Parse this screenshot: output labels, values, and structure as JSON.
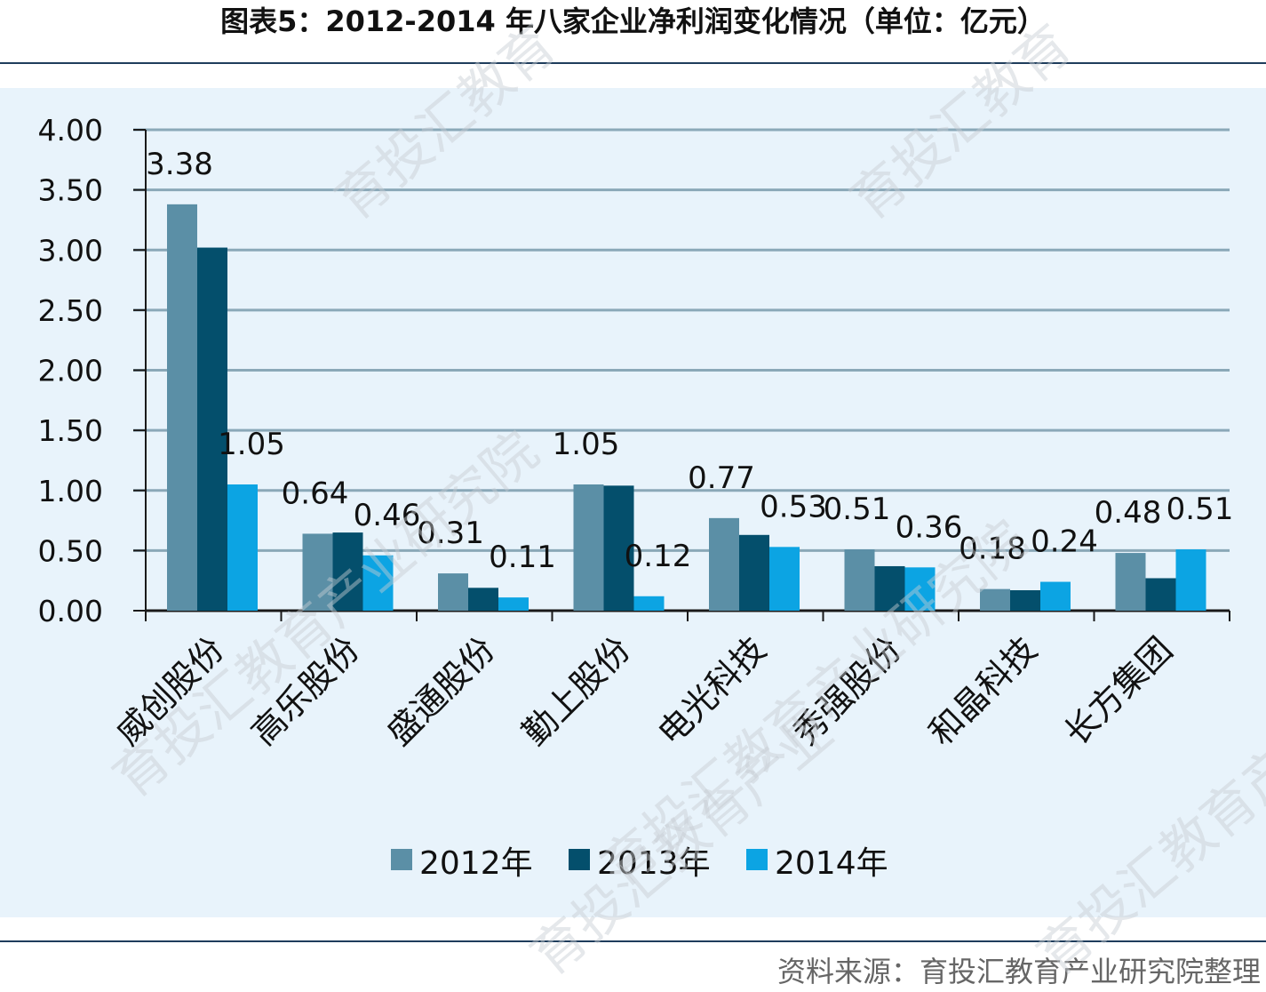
{
  "title": "图表5：2012-2014 年八家企业净利润变化情况（单位：亿元）",
  "source": "资料来源：育投汇教育产业研究院整理",
  "watermark": [
    "育投汇教育",
    "育投汇教育",
    "育投汇教育产业研究院",
    "育投汇教育产业研究院",
    "育投汇教育产业",
    "育投汇教育产业"
  ],
  "colors": {
    "s2012": "#5b8fa6",
    "s2013": "#044f6c",
    "s2014": "#0ca4e3",
    "grid": "#8aa8b8",
    "axis": "#1a1a1a"
  },
  "chart_data": {
    "type": "bar",
    "categories": [
      "威创股份",
      "高乐股份",
      "盛通股份",
      "勤上股份",
      "电光科技",
      "秀强股份",
      "和晶科技",
      "长方集团"
    ],
    "series": [
      {
        "name": "2012年",
        "values": [
          3.38,
          0.64,
          0.31,
          1.05,
          0.77,
          0.51,
          0.18,
          0.48
        ]
      },
      {
        "name": "2013年",
        "values": [
          3.02,
          0.65,
          0.19,
          1.04,
          0.63,
          0.37,
          0.17,
          0.27
        ]
      },
      {
        "name": "2014年",
        "values": [
          1.05,
          0.46,
          0.11,
          0.12,
          0.53,
          0.36,
          0.24,
          0.51
        ]
      }
    ],
    "data_labels": [
      {
        "category": 0,
        "series": 0,
        "text": "3.38"
      },
      {
        "category": 0,
        "series": 2,
        "text": "1.05"
      },
      {
        "category": 1,
        "series": 0,
        "text": "0.64"
      },
      {
        "category": 1,
        "series": 2,
        "text": "0.46"
      },
      {
        "category": 2,
        "series": 0,
        "text": "0.31"
      },
      {
        "category": 2,
        "series": 2,
        "text": "0.11"
      },
      {
        "category": 3,
        "series": 0,
        "text": "1.05"
      },
      {
        "category": 3,
        "series": 2,
        "text": "0.12"
      },
      {
        "category": 4,
        "series": 0,
        "text": "0.77"
      },
      {
        "category": 4,
        "series": 2,
        "text": "0.53"
      },
      {
        "category": 5,
        "series": 0,
        "text": "0.51"
      },
      {
        "category": 5,
        "series": 2,
        "text": "0.36"
      },
      {
        "category": 6,
        "series": 0,
        "text": "0.18"
      },
      {
        "category": 6,
        "series": 2,
        "text": "0.24"
      },
      {
        "category": 7,
        "series": 0,
        "text": "0.48"
      },
      {
        "category": 7,
        "series": 2,
        "text": "0.51"
      }
    ],
    "yticks": [
      "0.00",
      "0.50",
      "1.00",
      "1.50",
      "2.00",
      "2.50",
      "3.00",
      "3.50",
      "4.00"
    ],
    "ylim": [
      0,
      4
    ],
    "grid": true,
    "legend": "bottom"
  }
}
